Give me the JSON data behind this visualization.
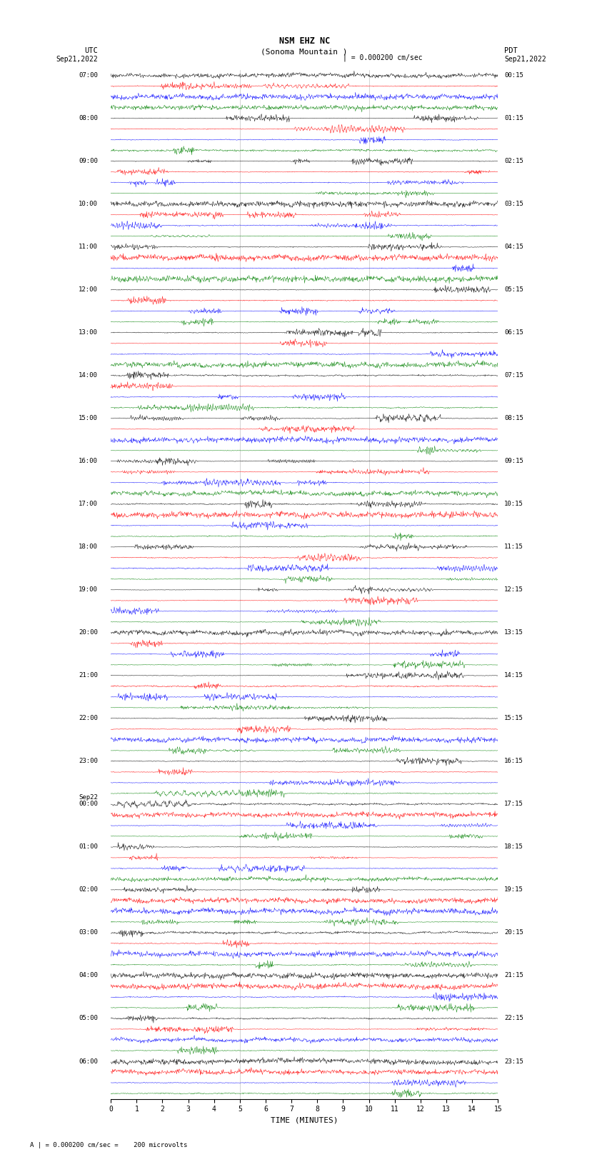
{
  "title_line1": "NSM EHZ NC",
  "title_line2": "(Sonoma Mountain )",
  "scale_label": "| = 0.000200 cm/sec",
  "left_date": "Sep21,2022",
  "right_date": "Sep21,2022",
  "left_header": "UTC",
  "right_header": "PDT",
  "xlabel": "TIME (MINUTES)",
  "footer": "A | = 0.000200 cm/sec =    200 microvolts",
  "bg_color": "#ffffff",
  "trace_colors": [
    "black",
    "red",
    "blue",
    "green"
  ],
  "left_hour_labels": [
    "07:00",
    "08:00",
    "09:00",
    "10:00",
    "11:00",
    "12:00",
    "13:00",
    "14:00",
    "15:00",
    "16:00",
    "17:00",
    "18:00",
    "19:00",
    "20:00",
    "21:00",
    "22:00",
    "23:00",
    "00:00",
    "01:00",
    "02:00",
    "03:00",
    "04:00",
    "05:00",
    "06:00"
  ],
  "right_hour_labels": [
    "00:15",
    "01:15",
    "02:15",
    "03:15",
    "04:15",
    "05:15",
    "06:15",
    "07:15",
    "08:15",
    "09:15",
    "10:15",
    "11:15",
    "12:15",
    "13:15",
    "14:15",
    "15:15",
    "16:15",
    "17:15",
    "18:15",
    "19:15",
    "20:15",
    "21:15",
    "22:15",
    "23:15"
  ],
  "sep22_hour_index": 17,
  "n_hours": 24,
  "n_traces_per_hour": 4,
  "minutes": 15,
  "x_ticks": [
    0,
    1,
    2,
    3,
    4,
    5,
    6,
    7,
    8,
    9,
    10,
    11,
    12,
    13,
    14,
    15
  ],
  "vline_positions": [
    5,
    10
  ],
  "grid_color": "#999999",
  "high_amp_hour": 10,
  "n_samples": 900
}
